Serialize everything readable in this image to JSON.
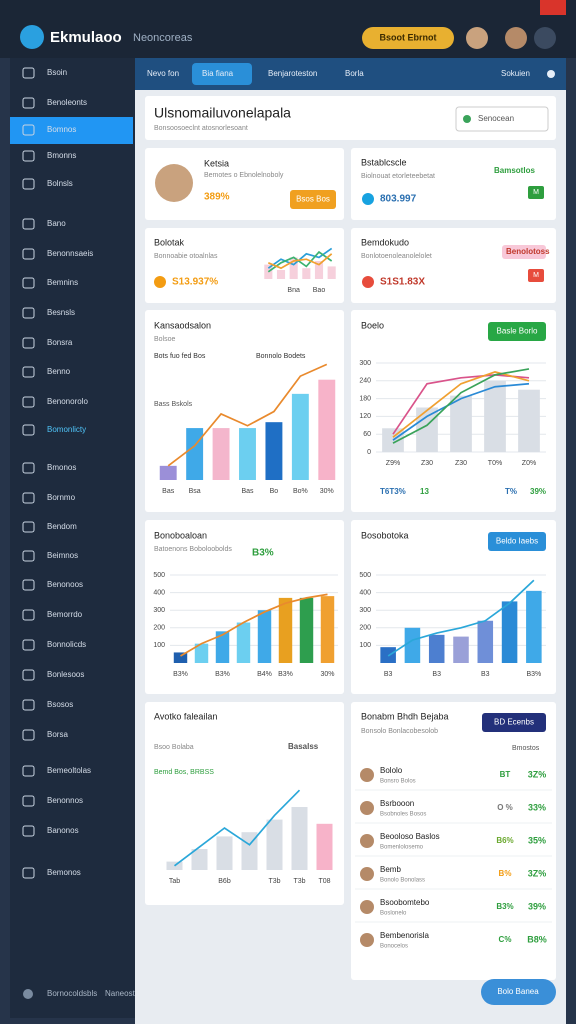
{
  "app": {
    "logo": "Ekmulaoo",
    "workspace": "Neoncoreas",
    "action": "Bsoot Ebrnot"
  },
  "sidebar": {
    "items": [
      "Bsoin",
      "Benoleonts",
      "Bomnos",
      "Bmonns",
      "Bolnsls",
      "Bano",
      "Benonnsaeis",
      "Bemnins",
      "Besnsls",
      "Bonsra",
      "Benno",
      "Benonorolo",
      "Bomonlicty",
      "Bmonos",
      "Bornmo",
      "Bendom",
      "Beimnos",
      "Benonoos",
      "Bemorrdo",
      "Bonnolicds",
      "Bonlesoos",
      "Bsosos",
      "Borsa",
      "Bemeoltolas",
      "Benonnos",
      "Banonos",
      "Bemonos"
    ],
    "footer": "Bornocoldsbls",
    "footer_note": "Naneosticeceed Besk"
  },
  "tabs": [
    "Nevo fon",
    "Bia fiana",
    "Benjaroteston",
    "Borla",
    "Sokuien"
  ],
  "page": {
    "title": "Ulsnomailuvonelapala",
    "subtitle": "Bonsoosoeclnt atosnorlesoant",
    "search": "Senocean"
  },
  "cards": [
    {
      "title": "Ketsia",
      "subtitle": "Bemotes o Ebnolelnoboly",
      "value": "389%",
      "button": "Bsos Bos"
    },
    {
      "title": "Bstablcscle",
      "subtitle": "Biolnouat etorleteebetat",
      "value": "803.997",
      "tag": "Bamsotlos",
      "badge": "M"
    },
    {
      "title": "Bolotak",
      "subtitle": "Bonnoabie otoalnlas",
      "value": "S13.937%",
      "chart": {
        "type": "line",
        "ylim": [
          0,
          100
        ],
        "categories": [
          null,
          null,
          "Bna",
          null,
          "Bao",
          null
        ],
        "bars": {
          "color": "#f6d0dc",
          "values": [
            40,
            25,
            60,
            30,
            50,
            35
          ]
        },
        "lines": [
          {
            "color": "#2a9fd8",
            "values": [
              30,
              55,
              40,
              70,
              60,
              85
            ]
          },
          {
            "color": "#3cb371",
            "values": [
              20,
              45,
              60,
              35,
              75,
              50
            ]
          },
          {
            "color": "#f0a030",
            "values": [
              45,
              30,
              50,
              55,
              40,
              70
            ]
          }
        ]
      }
    },
    {
      "title": "Bemdokudo",
      "subtitle": "Bonlotoenoleanolelolet",
      "value": "S1S1.83X",
      "tag": "Benolotoss",
      "badge": "M"
    },
    {
      "title": "Kansaodsalon",
      "subtitle": "Bolsoe",
      "legend": [
        "Bots fuo fed Bos",
        "Bonnolo Bodets"
      ],
      "note": "Bass Bskols",
      "chart": {
        "type": "bar",
        "ylim": [
          0,
          100
        ],
        "categories": [
          "Bas",
          "Bsa",
          null,
          "Bas",
          "Bo",
          "Bo%",
          "30%"
        ],
        "bars": {
          "color": [
            "#9b8fd8",
            "#3fa9e8",
            "#f4b6cc",
            "#6ccff0",
            "#1f6fc5",
            "#6ccff0",
            "#f7b3c9"
          ],
          "values": [
            12,
            44,
            44,
            44,
            49,
            73,
            85
          ]
        },
        "lines": [
          {
            "color": "#e98a2d",
            "values": [
              12,
              29,
              56,
              46,
              58,
              88,
              98
            ]
          }
        ]
      }
    },
    {
      "title": "Boelo",
      "button": "Basle Borlo",
      "footer": [
        "T6T3%",
        "13",
        "T%",
        "39%"
      ],
      "chart": {
        "type": "bar",
        "ylim": [
          0,
          300
        ],
        "yticks": [
          0,
          60,
          120,
          180,
          240,
          300
        ],
        "categories": [
          "Z9%",
          "Z30",
          "Z30",
          "T0%",
          "Z0%"
        ],
        "bars": {
          "color": "#d9dee5",
          "values": [
            80,
            150,
            190,
            240,
            210
          ]
        },
        "lines": [
          {
            "color": "#d9538a",
            "values": [
              60,
              230,
              250,
              260,
              250
            ]
          },
          {
            "color": "#2a8ad6",
            "values": [
              40,
              120,
              180,
              220,
              230
            ]
          },
          {
            "color": "#f0a030",
            "values": [
              50,
              140,
              230,
              270,
              240
            ]
          },
          {
            "color": "#3aa35a",
            "values": [
              30,
              90,
              200,
              260,
              280
            ]
          }
        ]
      }
    },
    {
      "title": "Bonoboaloan",
      "subtitle": "Batoenons Boboloobolds",
      "value": "B3%",
      "chart": {
        "type": "bar",
        "ylim": [
          0,
          500
        ],
        "yticks": [
          100,
          200,
          300,
          400,
          500
        ],
        "categories": [
          "B3%",
          null,
          "B3%",
          null,
          "B4%",
          "B3%",
          null,
          "30%"
        ],
        "bars": {
          "color": [
            "#1f5fae",
            "#6ccff0",
            "#3fa9e8",
            "#6ccff0",
            "#3fa9e8",
            "#e8a020",
            "#2e9e4e",
            "#f0a030"
          ],
          "values": [
            60,
            110,
            180,
            230,
            300,
            370,
            370,
            380
          ]
        },
        "lines": [
          {
            "color": "#e98a2d",
            "values": [
              40,
              110,
              160,
              230,
              290,
              340,
              370,
              390
            ]
          }
        ]
      }
    },
    {
      "title": "Bosobotoka",
      "button": "Beldo Iaebs",
      "chart": {
        "type": "bar",
        "ylim": [
          0,
          500
        ],
        "yticks": [
          100,
          200,
          300,
          400,
          500
        ],
        "categories": [
          "B3",
          null,
          "B3",
          null,
          "B3",
          null,
          "B3%"
        ],
        "bars": {
          "color": [
            "#2a6fc5",
            "#3fa9e8",
            "#4d7fd0",
            "#9aa0d8",
            "#6f8fd8",
            "#2a8ad6",
            "#3fa9e8"
          ],
          "values": [
            90,
            200,
            160,
            150,
            240,
            350,
            410
          ]
        },
        "lines": [
          {
            "color": "#2aa7d9",
            "values": [
              40,
              130,
              170,
              200,
              240,
              340,
              470
            ]
          }
        ]
      }
    },
    {
      "title": "Avotko faleailan",
      "subtitle": "Bsoo Bolaba",
      "tag": "Basalss",
      "note": "Bemd Bos, BRBSS",
      "chart": {
        "type": "bar",
        "ylim": [
          0,
          250
        ],
        "categories": [
          "Tab",
          null,
          "B6b",
          null,
          "T3b",
          "T3b",
          "T08"
        ],
        "bars": {
          "color": [
            "#d9dee5",
            "#d9dee5",
            "#d9dee5",
            "#d9dee5",
            "#d9dee5",
            "#d9dee5",
            "#f7b3c9"
          ],
          "values": [
            20,
            50,
            80,
            90,
            120,
            150,
            110
          ]
        },
        "lines": [
          {
            "color": "#2aa7d9",
            "values": [
              10,
              55,
              100,
              60,
              130,
              190,
              null
            ]
          }
        ]
      }
    },
    {
      "title": "Bonabm Bhdh Bejaba",
      "subtitle": "Bonsolo Bonlacobesolob",
      "button": "BD Ecenbs",
      "header": "Bmostos",
      "rows": [
        {
          "name": "Bololo",
          "detail": "Bonsro Bolos",
          "badge": "BT",
          "value": "3Z%",
          "color": "#2e9e3e"
        },
        {
          "name": "Bsrbooon",
          "detail": "Bsobnoles Bosos",
          "badge": "O %",
          "value": "33%",
          "color": "#777777"
        },
        {
          "name": "Beooloso Baslos",
          "detail": "Bomenlolosemo",
          "badge": "B6%",
          "value": "35%",
          "color": "#6aa82e"
        },
        {
          "name": "Bemb",
          "detail": "Bonolo Bonolass",
          "badge": "B%",
          "value": "3Z%",
          "color": "#f39c12"
        },
        {
          "name": "Bsoobomtebo",
          "detail": "Boslonelo",
          "badge": "B3%",
          "value": "39%",
          "color": "#2e9e3e"
        },
        {
          "name": "Bembenorisla",
          "detail": "Bonocelos",
          "badge": "C%",
          "value": "B8%",
          "color": "#2e9e3e"
        }
      ]
    }
  ],
  "fab": "Bolo Banea"
}
